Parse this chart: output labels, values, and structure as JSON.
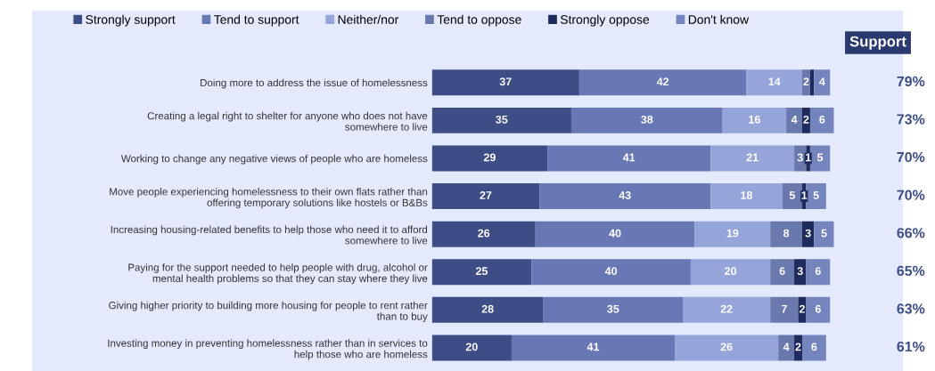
{
  "chart_data": {
    "type": "bar",
    "orientation": "horizontal",
    "stacked": true,
    "legend": "top",
    "grid": false,
    "tick_labels": "y",
    "categories": [
      "Doing more to address the issue of homelessness",
      "Creating a legal right to shelter for anyone who does not have\nsomewhere to live",
      "Working to change any negative views of people who are homeless",
      "Move people experiencing homelessness to their own flats rather than\noffering temporary solutions like hostels or B&Bs",
      "Increasing housing-related benefits to help those who need it to afford\nsomewhere to live",
      "Paying for the support needed to help people with drug, alcohol or\nmental health problems so that they can stay where they live",
      "Giving higher priority to building more housing for people to rent rather\nthan to buy",
      "Investing money in preventing homelessness rather than in services to\nhelp those who are homeless"
    ],
    "series": [
      {
        "name": "Strongly support",
        "color": "#3d4d85",
        "values": [
          37,
          35,
          29,
          27,
          26,
          25,
          28,
          20
        ],
        "value_labels": [
          "37",
          "35",
          "29",
          "27",
          "26",
          "25",
          "28",
          "20"
        ]
      },
      {
        "name": "Tend to support",
        "color": "#6878b4",
        "values": [
          42,
          38,
          41,
          43,
          40,
          40,
          35,
          41
        ],
        "value_labels": [
          "42",
          "38",
          "41",
          "43",
          "40",
          "40",
          "35",
          "41"
        ]
      },
      {
        "name": "Neither/nor",
        "color": "#95a4d9",
        "values": [
          14,
          16,
          21,
          18,
          19,
          20,
          22,
          26
        ],
        "value_labels": [
          "14",
          "16",
          "21",
          "18",
          "19",
          "20",
          "22",
          "26"
        ]
      },
      {
        "name": "Tend to oppose",
        "color": "#6a79ad",
        "values": [
          2,
          4,
          3,
          5,
          8,
          6,
          7,
          4
        ],
        "value_labels": [
          "2",
          "4",
          "3",
          "5",
          "8",
          "6",
          "7",
          "4"
        ]
      },
      {
        "name": "Strongly oppose",
        "color": "#1e2b5c",
        "values": [
          1,
          2,
          1,
          1,
          3,
          3,
          2,
          2
        ],
        "value_labels": [
          null,
          "2",
          "1",
          "1",
          "3",
          "3",
          "2",
          "2"
        ]
      },
      {
        "name": "Don't know",
        "color": "#7485be",
        "values": [
          4,
          6,
          5,
          5,
          5,
          6,
          6,
          6
        ],
        "value_labels": [
          "4",
          "6",
          "5",
          "5",
          "5",
          "6",
          "6",
          "6"
        ]
      }
    ],
    "annotations": [
      "Support",
      "79%",
      "73%",
      "70%",
      "70%",
      "66%",
      "65%",
      "63%",
      "61%"
    ]
  }
}
